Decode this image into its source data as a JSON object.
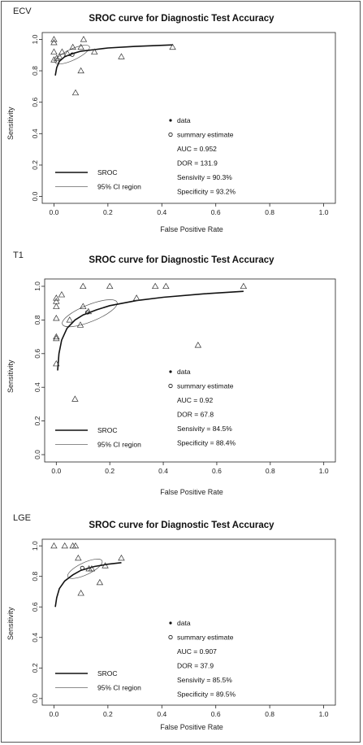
{
  "chart_data": [
    {
      "type": "scatter",
      "panel_label": "ECV",
      "title": "SROC curve for Diagnostic Test Accuracy",
      "xlabel": "False Positive Rate",
      "ylabel": "Sensitivity",
      "xlim": [
        0,
        1
      ],
      "ylim": [
        0,
        1
      ],
      "xticks": [
        "0.0",
        "0.2",
        "0.4",
        "0.6",
        "0.8",
        "1.0"
      ],
      "yticks": [
        "0.0",
        "0.2",
        "0.4",
        "0.6",
        "0.8",
        "1.0"
      ],
      "points": [
        {
          "x": 0.0,
          "y": 1.0
        },
        {
          "x": 0.0,
          "y": 0.98
        },
        {
          "x": 0.0,
          "y": 0.92
        },
        {
          "x": 0.0,
          "y": 0.87
        },
        {
          "x": 0.01,
          "y": 0.88
        },
        {
          "x": 0.02,
          "y": 0.89
        },
        {
          "x": 0.03,
          "y": 0.92
        },
        {
          "x": 0.05,
          "y": 0.91
        },
        {
          "x": 0.07,
          "y": 0.95
        },
        {
          "x": 0.08,
          "y": 0.66
        },
        {
          "x": 0.1,
          "y": 0.95
        },
        {
          "x": 0.1,
          "y": 0.8
        },
        {
          "x": 0.11,
          "y": 1.0
        },
        {
          "x": 0.15,
          "y": 0.92
        },
        {
          "x": 0.25,
          "y": 0.89
        },
        {
          "x": 0.44,
          "y": 0.95
        }
      ],
      "sroc_curve": [
        {
          "x": 0.005,
          "y": 0.77
        },
        {
          "x": 0.01,
          "y": 0.82
        },
        {
          "x": 0.02,
          "y": 0.86
        },
        {
          "x": 0.04,
          "y": 0.89
        },
        {
          "x": 0.07,
          "y": 0.91
        },
        {
          "x": 0.1,
          "y": 0.925
        },
        {
          "x": 0.15,
          "y": 0.935
        },
        {
          "x": 0.2,
          "y": 0.945
        },
        {
          "x": 0.3,
          "y": 0.955
        },
        {
          "x": 0.44,
          "y": 0.965
        }
      ],
      "summary_point": {
        "x": 0.068,
        "y": 0.903
      },
      "ci_ellipse": {
        "cx": 0.068,
        "cy": 0.903,
        "rx": 0.07,
        "ry": 0.035,
        "rot": -25
      },
      "legend_items": [
        {
          "symbol": "dot",
          "label": "data"
        },
        {
          "symbol": "circle",
          "label": "summary estimate"
        }
      ],
      "stats": [
        "AUC = 0.952",
        "DOR = 131.9",
        "Sensivity = 90.3%",
        "Specificity = 93.2%"
      ],
      "line_legend": [
        "SROC",
        "95% CI region"
      ]
    },
    {
      "type": "scatter",
      "panel_label": "T1",
      "title": "SROC curve for Diagnostic Test Accuracy",
      "xlabel": "False Positive Rate",
      "ylabel": "Sensitivity",
      "xlim": [
        0,
        1
      ],
      "ylim": [
        0,
        1
      ],
      "xticks": [
        "0.0",
        "0.2",
        "0.4",
        "0.6",
        "0.8",
        "1.0"
      ],
      "yticks": [
        "0.0",
        "0.2",
        "0.4",
        "0.6",
        "0.8",
        "1.0"
      ],
      "points": [
        {
          "x": 0.0,
          "y": 0.93
        },
        {
          "x": 0.0,
          "y": 0.91
        },
        {
          "x": 0.0,
          "y": 0.88
        },
        {
          "x": 0.0,
          "y": 0.81
        },
        {
          "x": 0.0,
          "y": 0.7
        },
        {
          "x": 0.0,
          "y": 0.69
        },
        {
          "x": 0.0,
          "y": 0.54
        },
        {
          "x": 0.02,
          "y": 0.95
        },
        {
          "x": 0.05,
          "y": 0.8
        },
        {
          "x": 0.07,
          "y": 0.33
        },
        {
          "x": 0.09,
          "y": 0.77
        },
        {
          "x": 0.1,
          "y": 0.88
        },
        {
          "x": 0.1,
          "y": 1.0
        },
        {
          "x": 0.12,
          "y": 0.85
        },
        {
          "x": 0.2,
          "y": 1.0
        },
        {
          "x": 0.3,
          "y": 0.93
        },
        {
          "x": 0.37,
          "y": 1.0
        },
        {
          "x": 0.41,
          "y": 1.0
        },
        {
          "x": 0.53,
          "y": 0.65
        },
        {
          "x": 0.7,
          "y": 1.0
        }
      ],
      "sroc_curve": [
        {
          "x": 0.005,
          "y": 0.5
        },
        {
          "x": 0.01,
          "y": 0.6
        },
        {
          "x": 0.02,
          "y": 0.68
        },
        {
          "x": 0.04,
          "y": 0.75
        },
        {
          "x": 0.07,
          "y": 0.8
        },
        {
          "x": 0.1,
          "y": 0.83
        },
        {
          "x": 0.15,
          "y": 0.86
        },
        {
          "x": 0.2,
          "y": 0.885
        },
        {
          "x": 0.3,
          "y": 0.915
        },
        {
          "x": 0.4,
          "y": 0.935
        },
        {
          "x": 0.55,
          "y": 0.955
        },
        {
          "x": 0.7,
          "y": 0.97
        }
      ],
      "summary_point": {
        "x": 0.116,
        "y": 0.845
      },
      "ci_ellipse": {
        "cx": 0.125,
        "cy": 0.84,
        "rx": 0.11,
        "ry": 0.05,
        "rot": -22
      },
      "legend_items": [
        {
          "symbol": "dot",
          "label": "data"
        },
        {
          "symbol": "circle",
          "label": "summary estimate"
        }
      ],
      "stats": [
        "AUC = 0.92",
        "DOR = 67.8",
        "Sensivity = 84.5%",
        "Specificity = 88.4%"
      ],
      "line_legend": [
        "SROC",
        "95% CI region"
      ]
    },
    {
      "type": "scatter",
      "panel_label": "LGE",
      "title": "SROC curve for Diagnostic Test Accuracy",
      "xlabel": "False Positive Rate",
      "ylabel": "Sensitivity",
      "xlim": [
        0,
        1
      ],
      "ylim": [
        0,
        1
      ],
      "xticks": [
        "0.0",
        "0.2",
        "0.4",
        "0.6",
        "0.8",
        "1.0"
      ],
      "yticks": [
        "0.0",
        "0.2",
        "0.4",
        "0.6",
        "0.8",
        "1.0"
      ],
      "points": [
        {
          "x": 0.0,
          "y": 1.0
        },
        {
          "x": 0.04,
          "y": 1.0
        },
        {
          "x": 0.07,
          "y": 1.0
        },
        {
          "x": 0.08,
          "y": 1.0
        },
        {
          "x": 0.09,
          "y": 0.92
        },
        {
          "x": 0.1,
          "y": 0.69
        },
        {
          "x": 0.13,
          "y": 0.85
        },
        {
          "x": 0.14,
          "y": 0.85
        },
        {
          "x": 0.17,
          "y": 0.76
        },
        {
          "x": 0.19,
          "y": 0.87
        },
        {
          "x": 0.25,
          "y": 0.92
        }
      ],
      "sroc_curve": [
        {
          "x": 0.005,
          "y": 0.6
        },
        {
          "x": 0.01,
          "y": 0.66
        },
        {
          "x": 0.02,
          "y": 0.72
        },
        {
          "x": 0.04,
          "y": 0.77
        },
        {
          "x": 0.07,
          "y": 0.81
        },
        {
          "x": 0.1,
          "y": 0.84
        },
        {
          "x": 0.15,
          "y": 0.865
        },
        {
          "x": 0.2,
          "y": 0.88
        },
        {
          "x": 0.25,
          "y": 0.89
        }
      ],
      "summary_point": {
        "x": 0.105,
        "y": 0.855
      },
      "ci_ellipse": {
        "cx": 0.115,
        "cy": 0.85,
        "rx": 0.07,
        "ry": 0.04,
        "rot": -25
      },
      "legend_items": [
        {
          "symbol": "dot",
          "label": "data"
        },
        {
          "symbol": "circle",
          "label": "summary estimate"
        }
      ],
      "stats": [
        "AUC = 0.907",
        "DOR = 37.9",
        "Sensivity = 85.5%",
        "Specificity = 89.5%"
      ],
      "line_legend": [
        "SROC",
        "95% CI region"
      ]
    }
  ]
}
